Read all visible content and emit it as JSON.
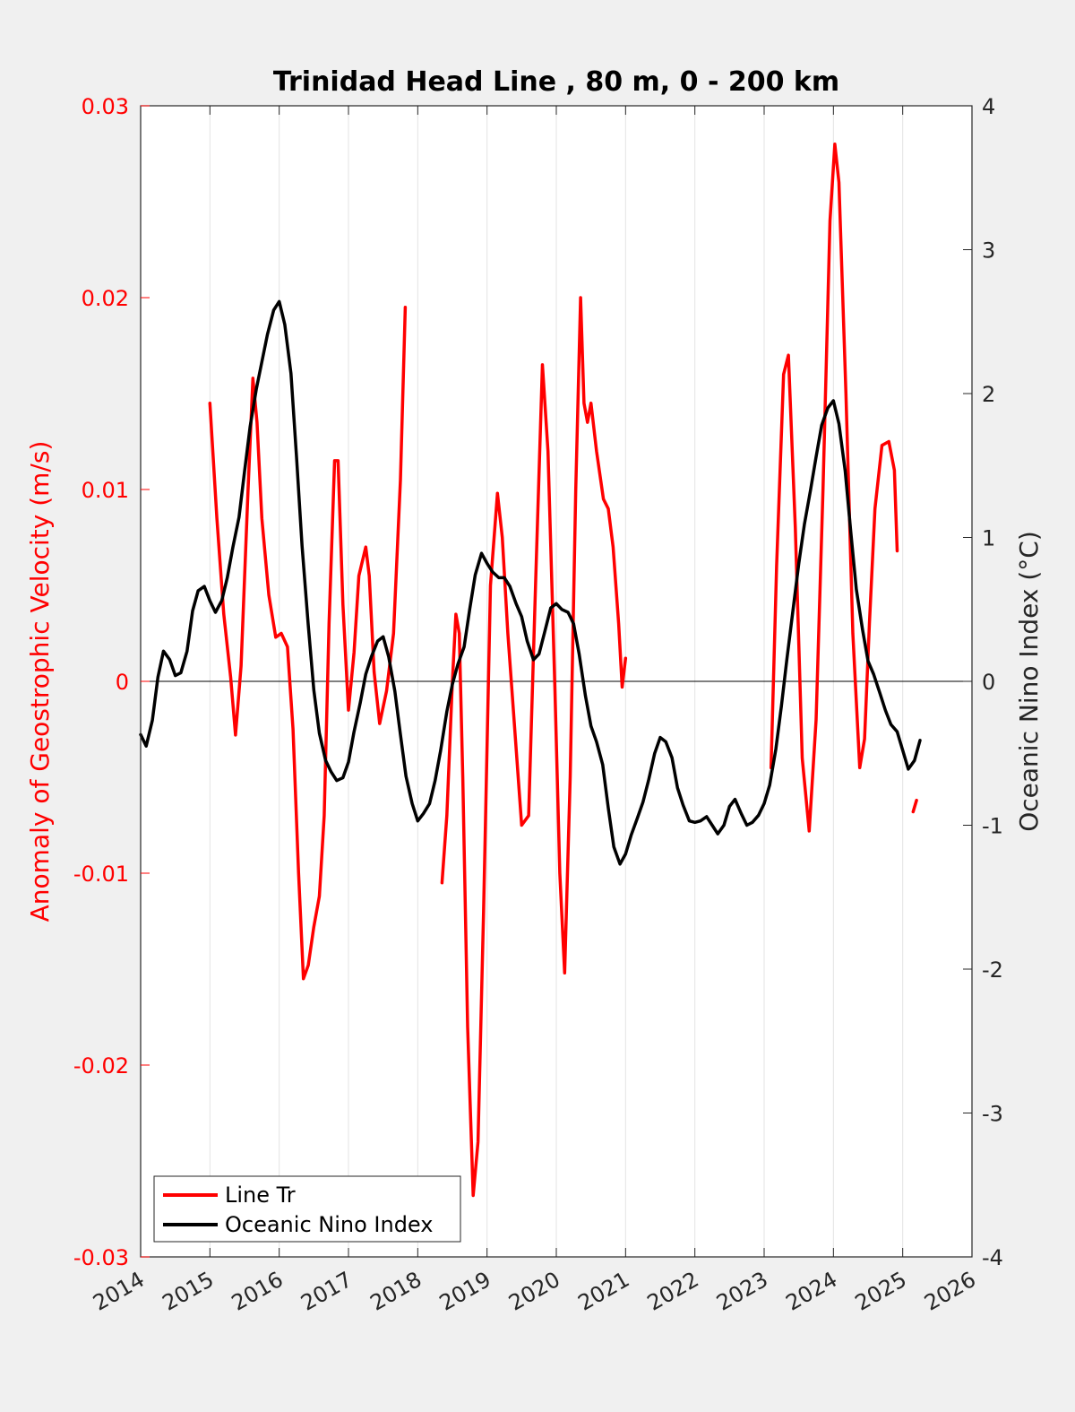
{
  "chart_data": {
    "type": "line",
    "title": "Trinidad Head Line , 80 m, 0 - 200 km",
    "ylabel": "Anomaly of Geostrophic Velocity (m/s)",
    "y2label": "Oceanic Nino Index (°C)",
    "xlim": [
      2014,
      2026
    ],
    "ylim": [
      -0.03,
      0.03
    ],
    "y2lim": [
      -4,
      4
    ],
    "xticks": [
      "2014",
      "2015",
      "2016",
      "2017",
      "2018",
      "2019",
      "2020",
      "2021",
      "2022",
      "2023",
      "2024",
      "2025",
      "2026"
    ],
    "yticks": [
      "-0.03",
      "-0.02",
      "-0.01",
      "0",
      "0.01",
      "0.02",
      "0.03"
    ],
    "y2ticks": [
      "-4",
      "-3",
      "-2",
      "-1",
      "0",
      "1",
      "2",
      "3",
      "4"
    ],
    "grid": "vertical",
    "legend_position": "bottom-left",
    "colors": {
      "left_axis": "#ff0000",
      "right_axis": "#262626",
      "series1": "#ff0000",
      "series2": "#000000"
    },
    "series": [
      {
        "name": "Line Tr",
        "axis": "left",
        "segments": [
          [
            [
              2015.0,
              0.0145
            ],
            [
              2015.1,
              0.0085
            ],
            [
              2015.2,
              0.0035
            ],
            [
              2015.3,
              0.0002
            ],
            [
              2015.37,
              -0.0028
            ],
            [
              2015.45,
              0.0008
            ],
            [
              2015.55,
              0.01
            ],
            [
              2015.62,
              0.0158
            ],
            [
              2015.68,
              0.0135
            ],
            [
              2015.75,
              0.0085
            ],
            [
              2015.85,
              0.0045
            ],
            [
              2015.95,
              0.0023
            ],
            [
              2016.03,
              0.0025
            ],
            [
              2016.12,
              0.0018
            ],
            [
              2016.2,
              -0.0025
            ],
            [
              2016.28,
              -0.01
            ],
            [
              2016.35,
              -0.0155
            ],
            [
              2016.42,
              -0.0148
            ],
            [
              2016.5,
              -0.0128
            ],
            [
              2016.58,
              -0.0112
            ],
            [
              2016.65,
              -0.007
            ],
            [
              2016.72,
              0.003
            ],
            [
              2016.8,
              0.0115
            ],
            [
              2016.85,
              0.0115
            ],
            [
              2016.92,
              0.004
            ],
            [
              2017.0,
              -0.0015
            ],
            [
              2017.08,
              0.0015
            ],
            [
              2017.15,
              0.0055
            ],
            [
              2017.25,
              0.007
            ],
            [
              2017.3,
              0.0055
            ],
            [
              2017.37,
              0.0005
            ],
            [
              2017.45,
              -0.0022
            ],
            [
              2017.55,
              -0.0005
            ],
            [
              2017.65,
              0.0025
            ],
            [
              2017.75,
              0.0105
            ],
            [
              2017.82,
              0.0195
            ]
          ],
          [
            [
              2018.35,
              -0.0105
            ],
            [
              2018.42,
              -0.007
            ],
            [
              2018.5,
              0.0
            ],
            [
              2018.55,
              0.0035
            ],
            [
              2018.6,
              0.0025
            ],
            [
              2018.65,
              -0.005
            ],
            [
              2018.72,
              -0.018
            ],
            [
              2018.8,
              -0.0268
            ],
            [
              2018.87,
              -0.024
            ],
            [
              2018.95,
              -0.012
            ],
            [
              2019.05,
              0.005
            ],
            [
              2019.15,
              0.0098
            ],
            [
              2019.22,
              0.0075
            ],
            [
              2019.3,
              0.0025
            ],
            [
              2019.4,
              -0.0025
            ],
            [
              2019.5,
              -0.0075
            ],
            [
              2019.6,
              -0.007
            ],
            [
              2019.7,
              0.005
            ],
            [
              2019.8,
              0.0165
            ],
            [
              2019.88,
              0.012
            ],
            [
              2019.98,
              -0.0005
            ],
            [
              2020.05,
              -0.01
            ],
            [
              2020.12,
              -0.0152
            ],
            [
              2020.2,
              -0.005
            ],
            [
              2020.28,
              0.01
            ],
            [
              2020.35,
              0.02
            ],
            [
              2020.4,
              0.0145
            ],
            [
              2020.45,
              0.0135
            ],
            [
              2020.5,
              0.0145
            ],
            [
              2020.58,
              0.012
            ],
            [
              2020.68,
              0.0095
            ],
            [
              2020.75,
              0.009
            ],
            [
              2020.82,
              0.007
            ],
            [
              2020.9,
              0.003
            ],
            [
              2020.95,
              -0.0003
            ],
            [
              2021.0,
              0.0012
            ]
          ],
          [
            [
              2023.1,
              -0.0045
            ],
            [
              2023.18,
              0.006
            ],
            [
              2023.28,
              0.016
            ],
            [
              2023.35,
              0.017
            ],
            [
              2023.45,
              0.008
            ],
            [
              2023.55,
              -0.004
            ],
            [
              2023.65,
              -0.0078
            ],
            [
              2023.75,
              -0.002
            ],
            [
              2023.85,
              0.01
            ],
            [
              2023.95,
              0.024
            ],
            [
              2024.02,
              0.028
            ],
            [
              2024.08,
              0.026
            ],
            [
              2024.18,
              0.015
            ],
            [
              2024.28,
              0.0025
            ],
            [
              2024.38,
              -0.0045
            ],
            [
              2024.45,
              -0.003
            ],
            [
              2024.52,
              0.003
            ],
            [
              2024.6,
              0.009
            ],
            [
              2024.7,
              0.0123
            ],
            [
              2024.8,
              0.0125
            ],
            [
              2024.88,
              0.011
            ],
            [
              2024.92,
              0.0068
            ]
          ],
          [
            [
              2025.15,
              -0.0068
            ],
            [
              2025.2,
              -0.0062
            ]
          ]
        ]
      },
      {
        "name": "Oceanic Nino Index",
        "axis": "right",
        "segments": [
          [
            [
              2014.0,
              -0.37
            ],
            [
              2014.08,
              -0.45
            ],
            [
              2014.17,
              -0.27
            ],
            [
              2014.25,
              0.03
            ],
            [
              2014.33,
              0.21
            ],
            [
              2014.42,
              0.15
            ],
            [
              2014.5,
              0.04
            ],
            [
              2014.58,
              0.06
            ],
            [
              2014.67,
              0.21
            ],
            [
              2014.75,
              0.49
            ],
            [
              2014.83,
              0.63
            ],
            [
              2014.92,
              0.66
            ],
            [
              2015.0,
              0.56
            ],
            [
              2015.08,
              0.48
            ],
            [
              2015.17,
              0.56
            ],
            [
              2015.25,
              0.72
            ],
            [
              2015.33,
              0.93
            ],
            [
              2015.42,
              1.14
            ],
            [
              2015.5,
              1.46
            ],
            [
              2015.58,
              1.77
            ],
            [
              2015.67,
              2.03
            ],
            [
              2015.75,
              2.22
            ],
            [
              2015.83,
              2.41
            ],
            [
              2015.92,
              2.58
            ],
            [
              2016.0,
              2.64
            ],
            [
              2016.08,
              2.48
            ],
            [
              2016.17,
              2.14
            ],
            [
              2016.25,
              1.56
            ],
            [
              2016.33,
              0.94
            ],
            [
              2016.42,
              0.39
            ],
            [
              2016.5,
              -0.06
            ],
            [
              2016.58,
              -0.36
            ],
            [
              2016.67,
              -0.55
            ],
            [
              2016.75,
              -0.63
            ],
            [
              2016.83,
              -0.69
            ],
            [
              2016.92,
              -0.67
            ],
            [
              2017.0,
              -0.56
            ],
            [
              2017.08,
              -0.35
            ],
            [
              2017.17,
              -0.15
            ],
            [
              2017.25,
              0.05
            ],
            [
              2017.33,
              0.17
            ],
            [
              2017.42,
              0.28
            ],
            [
              2017.5,
              0.31
            ],
            [
              2017.58,
              0.17
            ],
            [
              2017.67,
              -0.07
            ],
            [
              2017.75,
              -0.37
            ],
            [
              2017.83,
              -0.66
            ],
            [
              2017.92,
              -0.85
            ],
            [
              2018.0,
              -0.97
            ],
            [
              2018.08,
              -0.92
            ],
            [
              2018.17,
              -0.85
            ],
            [
              2018.25,
              -0.69
            ],
            [
              2018.33,
              -0.48
            ],
            [
              2018.42,
              -0.21
            ],
            [
              2018.5,
              -0.02
            ],
            [
              2018.58,
              0.12
            ],
            [
              2018.67,
              0.24
            ],
            [
              2018.75,
              0.5
            ],
            [
              2018.83,
              0.74
            ],
            [
              2018.92,
              0.89
            ],
            [
              2019.0,
              0.82
            ],
            [
              2019.08,
              0.76
            ],
            [
              2019.17,
              0.72
            ],
            [
              2019.25,
              0.72
            ],
            [
              2019.33,
              0.66
            ],
            [
              2019.42,
              0.54
            ],
            [
              2019.5,
              0.45
            ],
            [
              2019.58,
              0.28
            ],
            [
              2019.67,
              0.15
            ],
            [
              2019.75,
              0.19
            ],
            [
              2019.83,
              0.34
            ],
            [
              2019.92,
              0.51
            ],
            [
              2020.0,
              0.54
            ],
            [
              2020.08,
              0.5
            ],
            [
              2020.17,
              0.48
            ],
            [
              2020.25,
              0.4
            ],
            [
              2020.33,
              0.19
            ],
            [
              2020.42,
              -0.1
            ],
            [
              2020.5,
              -0.31
            ],
            [
              2020.58,
              -0.42
            ],
            [
              2020.67,
              -0.58
            ],
            [
              2020.75,
              -0.88
            ],
            [
              2020.83,
              -1.15
            ],
            [
              2020.92,
              -1.27
            ],
            [
              2021.0,
              -1.2
            ],
            [
              2021.08,
              -1.07
            ],
            [
              2021.17,
              -0.95
            ],
            [
              2021.25,
              -0.84
            ],
            [
              2021.33,
              -0.69
            ],
            [
              2021.42,
              -0.5
            ],
            [
              2021.5,
              -0.39
            ],
            [
              2021.58,
              -0.42
            ],
            [
              2021.67,
              -0.53
            ],
            [
              2021.75,
              -0.74
            ],
            [
              2021.83,
              -0.86
            ],
            [
              2021.92,
              -0.97
            ],
            [
              2022.0,
              -0.98
            ],
            [
              2022.08,
              -0.97
            ],
            [
              2022.17,
              -0.94
            ],
            [
              2022.25,
              -1.0
            ],
            [
              2022.33,
              -1.06
            ],
            [
              2022.42,
              -1.0
            ],
            [
              2022.5,
              -0.87
            ],
            [
              2022.58,
              -0.82
            ],
            [
              2022.67,
              -0.92
            ],
            [
              2022.75,
              -1.0
            ],
            [
              2022.83,
              -0.98
            ],
            [
              2022.92,
              -0.93
            ],
            [
              2023.0,
              -0.85
            ],
            [
              2023.08,
              -0.72
            ],
            [
              2023.17,
              -0.47
            ],
            [
              2023.25,
              -0.17
            ],
            [
              2023.33,
              0.16
            ],
            [
              2023.42,
              0.51
            ],
            [
              2023.5,
              0.82
            ],
            [
              2023.58,
              1.09
            ],
            [
              2023.67,
              1.33
            ],
            [
              2023.75,
              1.56
            ],
            [
              2023.83,
              1.78
            ],
            [
              2023.92,
              1.9
            ],
            [
              2024.0,
              1.95
            ],
            [
              2024.08,
              1.79
            ],
            [
              2024.17,
              1.46
            ],
            [
              2024.25,
              1.04
            ],
            [
              2024.33,
              0.64
            ],
            [
              2024.42,
              0.36
            ],
            [
              2024.5,
              0.14
            ],
            [
              2024.58,
              0.05
            ],
            [
              2024.67,
              -0.08
            ],
            [
              2024.75,
              -0.2
            ],
            [
              2024.83,
              -0.3
            ],
            [
              2024.92,
              -0.35
            ],
            [
              2025.0,
              -0.48
            ],
            [
              2025.08,
              -0.61
            ],
            [
              2025.17,
              -0.55
            ],
            [
              2025.25,
              -0.41
            ]
          ]
        ]
      }
    ]
  }
}
